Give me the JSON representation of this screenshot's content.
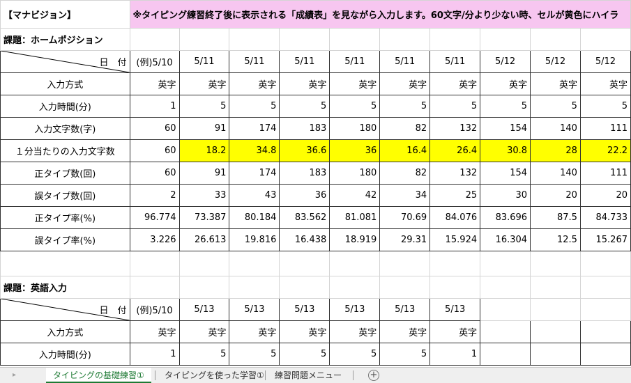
{
  "brand": "【マナビジョン】",
  "banner": "※タイピング練習終了後に表示される「成績表」を見ながら入力します。60文字/分より少ない時、セルが黄色にハイラ",
  "section1": {
    "title": "課題：ホームポジション",
    "header_label": "日　付",
    "dates": [
      "(例)5/10",
      "5/11",
      "5/11",
      "5/11",
      "5/11",
      "5/11",
      "5/11",
      "5/12",
      "5/12",
      "5/12"
    ],
    "rows": [
      {
        "label": "入力方式",
        "values": [
          "英字",
          "英字",
          "英字",
          "英字",
          "英字",
          "英字",
          "英字",
          "英字",
          "英字",
          "英字"
        ]
      },
      {
        "label": "入力時間(分)",
        "values": [
          "1",
          "5",
          "5",
          "5",
          "5",
          "5",
          "5",
          "5",
          "5",
          "5"
        ]
      },
      {
        "label": "入力文字数(字)",
        "values": [
          "60",
          "91",
          "174",
          "183",
          "180",
          "82",
          "132",
          "154",
          "140",
          "111"
        ]
      },
      {
        "label": "１分当たりの入力文字数",
        "values": [
          "60",
          "18.2",
          "34.8",
          "36.6",
          "36",
          "16.4",
          "26.4",
          "30.8",
          "28",
          "22.2"
        ],
        "highlight": [
          false,
          true,
          true,
          true,
          true,
          true,
          true,
          true,
          true,
          true
        ]
      },
      {
        "label": "正タイプ数(回)",
        "values": [
          "60",
          "91",
          "174",
          "183",
          "180",
          "82",
          "132",
          "154",
          "140",
          "111"
        ]
      },
      {
        "label": "誤タイプ数(回)",
        "values": [
          "2",
          "33",
          "43",
          "36",
          "42",
          "34",
          "25",
          "30",
          "20",
          "20"
        ]
      },
      {
        "label": "正タイプ率(%)",
        "values": [
          "96.774",
          "73.387",
          "80.184",
          "83.562",
          "81.081",
          "70.69",
          "84.076",
          "83.696",
          "87.5",
          "84.733"
        ]
      },
      {
        "label": "誤タイプ率(%)",
        "values": [
          "3.226",
          "26.613",
          "19.816",
          "16.438",
          "18.919",
          "29.31",
          "15.924",
          "16.304",
          "12.5",
          "15.267"
        ]
      }
    ]
  },
  "section2": {
    "title": "課題：英語入力",
    "header_label": "日　付",
    "dates": [
      "(例)5/10",
      "5/13",
      "5/13",
      "5/13",
      "5/13",
      "5/13",
      "5/13",
      "",
      "",
      ""
    ],
    "rows": [
      {
        "label": "入力方式",
        "values": [
          "英字",
          "英字",
          "英字",
          "英字",
          "英字",
          "英字",
          "英字",
          "",
          "",
          ""
        ]
      },
      {
        "label": "入力時間(分)",
        "values": [
          "1",
          "5",
          "5",
          "5",
          "5",
          "5",
          "1",
          "",
          "",
          ""
        ]
      }
    ]
  },
  "tabs": {
    "items": [
      {
        "label": "タイピングの基礎練習①",
        "active": true
      },
      {
        "label": "タイピングを使った学習①",
        "active": false
      },
      {
        "label": "練習問題メニュー",
        "active": false
      }
    ],
    "add_icon": "plus-circle-icon",
    "nav_icon": "scroll-arrow-icon"
  },
  "colors": {
    "highlight": "#ffff00",
    "banner_bg": "#f7c6f0",
    "banner_text": "#7a2aa8",
    "brand_text": "#1b8fd6",
    "active_tab": "#1e7a34"
  }
}
